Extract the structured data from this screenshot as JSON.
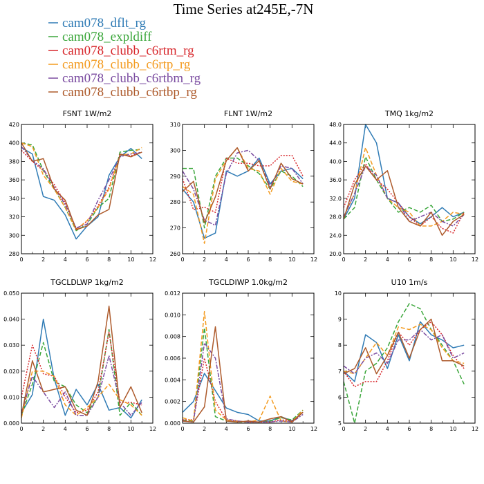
{
  "figure": {
    "title": "Time Series at245E,-7N"
  },
  "colors": {
    "cam078_dflt_rg": "#2f7bb5",
    "cam078_expldiff": "#3aa63a",
    "cam078_clubb_c6rtm_rg": "#d7262b",
    "cam078_clubb_c6rtp_rg": "#f39a1e",
    "cam078_clubb_c6rtbm_rg": "#7a4ba0",
    "cam078_clubb_c6rtbp_rg": "#ad5a2b"
  },
  "legend": [
    {
      "label": "cam078_dflt_rg",
      "color": "#2f7bb5"
    },
    {
      "label": "cam078_expldiff",
      "color": "#3aa63a"
    },
    {
      "label": "cam078_clubb_c6rtm_rg",
      "color": "#d7262b"
    },
    {
      "label": "cam078_clubb_c6rtp_rg",
      "color": "#f39a1e"
    },
    {
      "label": "cam078_clubb_c6rtbm_rg",
      "color": "#7a4ba0"
    },
    {
      "label": "cam078_clubb_c6rtbp_rg",
      "color": "#ad5a2b"
    }
  ],
  "chart_data": [
    {
      "type": "line",
      "title": "FSNT   1W/m2",
      "xlim": [
        0,
        12
      ],
      "ylim": [
        280,
        420
      ],
      "xticks": [
        "0",
        "2",
        "4",
        "6",
        "8",
        "10",
        "12"
      ],
      "yticks": [
        "280",
        "300",
        "320",
        "340",
        "360",
        "380",
        "400",
        "420"
      ],
      "x": [
        0,
        1,
        2,
        3,
        4,
        5,
        6,
        7,
        8,
        9,
        10,
        11
      ],
      "series": [
        {
          "name": "cam078_dflt_rg",
          "style": "solid",
          "values": [
            395,
            388,
            342,
            338,
            322,
            296,
            310,
            320,
            365,
            385,
            394,
            383
          ]
        },
        {
          "name": "cam078_expldiff",
          "style": "dash",
          "values": [
            400,
            398,
            370,
            350,
            330,
            305,
            312,
            330,
            340,
            390,
            392,
            393
          ]
        },
        {
          "name": "cam078_clubb_c6rtm_rg",
          "style": "dot",
          "values": [
            392,
            380,
            370,
            355,
            335,
            307,
            315,
            332,
            352,
            387,
            386,
            390
          ]
        },
        {
          "name": "cam078_clubb_c6rtp_rg",
          "style": "dash",
          "values": [
            400,
            396,
            365,
            350,
            330,
            306,
            316,
            330,
            350,
            387,
            388,
            395
          ]
        },
        {
          "name": "cam078_clubb_c6rtbm_rg",
          "style": "dashdot",
          "values": [
            396,
            381,
            372,
            352,
            333,
            308,
            312,
            338,
            360,
            385,
            388,
            390
          ]
        },
        {
          "name": "cam078_clubb_c6rtbp_rg",
          "style": "solid",
          "values": [
            400,
            380,
            383,
            350,
            338,
            306,
            310,
            322,
            328,
            388,
            385,
            390
          ]
        }
      ]
    },
    {
      "type": "line",
      "title": "FLNT   1W/m2",
      "xlim": [
        0,
        12
      ],
      "ylim": [
        260,
        310
      ],
      "xticks": [
        "0",
        "2",
        "4",
        "6",
        "8",
        "10",
        "12"
      ],
      "yticks": [
        "260",
        "270",
        "280",
        "290",
        "300",
        "310"
      ],
      "x": [
        0,
        1,
        2,
        3,
        4,
        5,
        6,
        7,
        8,
        9,
        10,
        11
      ],
      "series": [
        {
          "name": "cam078_dflt_rg",
          "style": "solid",
          "values": [
            285,
            280,
            266,
            268,
            292,
            290,
            292,
            297,
            287,
            292,
            293,
            289
          ]
        },
        {
          "name": "cam078_expldiff",
          "style": "dash",
          "values": [
            293,
            293,
            270,
            290,
            297,
            297,
            294,
            291,
            285,
            292,
            290,
            286
          ]
        },
        {
          "name": "cam078_clubb_c6rtm_rg",
          "style": "dot",
          "values": [
            289,
            277,
            278,
            276,
            297,
            295,
            295,
            294,
            294,
            298,
            298,
            290
          ]
        },
        {
          "name": "cam078_clubb_c6rtp_rg",
          "style": "dash",
          "values": [
            286,
            283,
            264,
            289,
            296,
            301,
            293,
            292,
            283,
            293,
            288,
            287
          ]
        },
        {
          "name": "cam078_clubb_c6rtbm_rg",
          "style": "dashdot",
          "values": [
            292,
            285,
            273,
            271,
            291,
            299,
            300,
            296,
            286,
            294,
            293,
            287
          ]
        },
        {
          "name": "cam078_clubb_c6rtbp_rg",
          "style": "solid",
          "values": [
            284,
            288,
            272,
            282,
            296,
            301,
            292,
            296,
            285,
            295,
            289,
            287
          ]
        }
      ]
    },
    {
      "type": "line",
      "title": "TMQ   1kg/m2",
      "xlim": [
        0,
        12
      ],
      "ylim": [
        20,
        48
      ],
      "xticks": [
        "0",
        "2",
        "4",
        "6",
        "8",
        "10",
        "12"
      ],
      "yticks": [
        "20.0",
        "24.0",
        "28.0",
        "32.0",
        "36.0",
        "40.0",
        "44.0",
        "48.0"
      ],
      "x": [
        0,
        1,
        2,
        3,
        4,
        5,
        6,
        7,
        8,
        9,
        10,
        11
      ],
      "series": [
        {
          "name": "cam078_dflt_rg",
          "style": "solid",
          "values": [
            27.5,
            32,
            48,
            44,
            32,
            31,
            28,
            26.5,
            28,
            30,
            28,
            29
          ]
        },
        {
          "name": "cam078_expldiff",
          "style": "dash",
          "values": [
            27.5,
            30,
            41,
            36,
            32,
            29,
            30,
            29,
            30.5,
            27,
            27.5,
            29
          ]
        },
        {
          "name": "cam078_clubb_c6rtm_rg",
          "style": "dot",
          "values": [
            30,
            36,
            39.5,
            36,
            34,
            31,
            28,
            26,
            28,
            25.5,
            24.5,
            29
          ]
        },
        {
          "name": "cam078_clubb_c6rtp_rg",
          "style": "dash",
          "values": [
            28,
            33,
            43,
            37,
            32,
            30,
            29,
            26,
            26,
            27,
            29,
            28.5
          ]
        },
        {
          "name": "cam078_clubb_c6rtbm_rg",
          "style": "dashdot",
          "values": [
            28,
            33,
            39,
            37,
            32,
            31,
            27,
            28,
            29,
            27,
            26,
            28.5
          ]
        },
        {
          "name": "cam078_clubb_c6rtbp_rg",
          "style": "solid",
          "values": [
            27.5,
            35,
            39,
            36,
            38,
            30,
            27,
            26,
            29,
            24,
            27,
            28.5
          ]
        }
      ]
    },
    {
      "type": "line",
      "title": "TGCLDLWP   1kg/m2",
      "xlim": [
        0,
        12
      ],
      "ylim": [
        0,
        0.05
      ],
      "xticks": [
        "0",
        "2",
        "4",
        "6",
        "8",
        "10",
        "12"
      ],
      "yticks": [
        "0.000",
        "0.010",
        "0.020",
        "0.030",
        "0.040",
        "0.050"
      ],
      "x": [
        0,
        1,
        2,
        3,
        4,
        5,
        6,
        7,
        8,
        9,
        10,
        11
      ],
      "series": [
        {
          "name": "cam078_dflt_rg",
          "style": "solid",
          "values": [
            0.004,
            0.011,
            0.04,
            0.017,
            0.003,
            0.013,
            0.007,
            0.015,
            0.005,
            0.006,
            0.002,
            0.009
          ]
        },
        {
          "name": "cam078_expldiff",
          "style": "dash",
          "values": [
            0.003,
            0.015,
            0.031,
            0.016,
            0.014,
            0.007,
            0.004,
            0.01,
            0.036,
            0.003,
            0.008,
            0.003
          ]
        },
        {
          "name": "cam078_clubb_c6rtm_rg",
          "style": "dot",
          "values": [
            0.01,
            0.03,
            0.019,
            0.018,
            0.01,
            0.004,
            0.005,
            0.012,
            0.035,
            0.008,
            0.008,
            0.007
          ]
        },
        {
          "name": "cam078_clubb_c6rtp_rg",
          "style": "dash",
          "values": [
            0.002,
            0.02,
            0.02,
            0.018,
            0.007,
            0.003,
            0.006,
            0.01,
            0.015,
            0.009,
            0.007,
            0.003
          ]
        },
        {
          "name": "cam078_clubb_c6rtbm_rg",
          "style": "dashdot",
          "values": [
            0.004,
            0.018,
            0.012,
            0.006,
            0.012,
            0.003,
            0.003,
            0.01,
            0.026,
            0.008,
            0.003,
            0.008
          ]
        },
        {
          "name": "cam078_clubb_c6rtbp_rg",
          "style": "solid",
          "values": [
            0.003,
            0.024,
            0.012,
            0.013,
            0.014,
            0.005,
            0.003,
            0.016,
            0.045,
            0.006,
            0.014,
            0.004
          ]
        }
      ]
    },
    {
      "type": "line",
      "title": "TGCLDIWP   1.0kg/m2",
      "xlim": [
        0,
        12
      ],
      "ylim": [
        0,
        0.012
      ],
      "xticks": [
        "0",
        "2",
        "4",
        "6",
        "8",
        "10",
        "12"
      ],
      "yticks": [
        "0.000",
        "0.002",
        "0.004",
        "0.006",
        "0.008",
        "0.010",
        "0.012"
      ],
      "x": [
        0,
        1,
        2,
        3,
        4,
        5,
        6,
        7,
        8,
        9,
        10,
        11
      ],
      "series": [
        {
          "name": "cam078_dflt_rg",
          "style": "solid",
          "values": [
            0.001,
            0.002,
            0.0046,
            0.003,
            0.0014,
            0.001,
            0.0008,
            0.0002,
            0.0002,
            0.0006,
            0.0002,
            0.001
          ]
        },
        {
          "name": "cam078_expldiff",
          "style": "dash",
          "values": [
            0.0003,
            0.0002,
            0.0088,
            0.0006,
            0.0002,
            0.0001,
            0.0001,
            0.0001,
            0.0002,
            0.0005,
            0.0003,
            0.0012
          ]
        },
        {
          "name": "cam078_clubb_c6rtm_rg",
          "style": "dot",
          "values": [
            0.0003,
            0.0003,
            0.006,
            0.002,
            0.0003,
            0.0002,
            0.0001,
            0.0001,
            0.0001,
            0.0003,
            0.0002,
            0.001
          ]
        },
        {
          "name": "cam078_clubb_c6rtp_rg",
          "style": "dash",
          "values": [
            0.0005,
            0.0002,
            0.0103,
            0.0012,
            0.0003,
            0.0002,
            0.0001,
            0.0003,
            0.0025,
            0.0002,
            0.0001,
            0.0012
          ]
        },
        {
          "name": "cam078_clubb_c6rtbm_rg",
          "style": "dashdot",
          "values": [
            0.0002,
            0.0001,
            0.0074,
            0.006,
            0.0004,
            0.0002,
            0.0001,
            0.0001,
            0.0001,
            0.0002,
            0.0001,
            0.0008
          ]
        },
        {
          "name": "cam078_clubb_c6rtbp_rg",
          "style": "solid",
          "values": [
            0.0002,
            0.0001,
            0.0015,
            0.0089,
            0.0002,
            0.0001,
            0.0002,
            0.0001,
            0.0004,
            0.0006,
            0.0001,
            0.001
          ]
        }
      ]
    },
    {
      "type": "line",
      "title": "U10   1m/s",
      "xlim": [
        0,
        12
      ],
      "ylim": [
        5,
        10
      ],
      "xticks": [
        "0",
        "2",
        "4",
        "6",
        "8",
        "10",
        "12"
      ],
      "yticks": [
        "5",
        "6",
        "7",
        "8",
        "9",
        "10"
      ],
      "x": [
        0,
        1,
        2,
        3,
        4,
        5,
        6,
        7,
        8,
        9,
        10,
        11
      ],
      "series": [
        {
          "name": "cam078_dflt_rg",
          "style": "solid",
          "values": [
            7.0,
            6.6,
            8.4,
            8.1,
            7.1,
            8.4,
            7.4,
            8.9,
            8.4,
            8.2,
            7.9,
            8.0
          ]
        },
        {
          "name": "cam078_expldiff",
          "style": "dash",
          "values": [
            6.6,
            5.0,
            7.0,
            7.3,
            7.9,
            8.9,
            9.6,
            9.4,
            8.6,
            8.0,
            7.4,
            6.5
          ]
        },
        {
          "name": "cam078_clubb_c6rtm_rg",
          "style": "dot",
          "values": [
            7.0,
            6.4,
            6.6,
            6.6,
            7.4,
            8.5,
            8.0,
            8.6,
            8.9,
            8.4,
            7.6,
            7.1
          ]
        },
        {
          "name": "cam078_clubb_c6rtp_rg",
          "style": "dash",
          "values": [
            7.0,
            6.9,
            7.5,
            8.1,
            7.6,
            8.7,
            8.6,
            8.8,
            8.6,
            7.9,
            7.4,
            7.3
          ]
        },
        {
          "name": "cam078_clubb_c6rtbm_rg",
          "style": "dashdot",
          "values": [
            7.2,
            6.9,
            7.5,
            7.7,
            7.3,
            8.2,
            8.2,
            8.6,
            8.2,
            8.4,
            7.5,
            7.7
          ]
        },
        {
          "name": "cam078_clubb_c6rtbp_rg",
          "style": "solid",
          "values": [
            6.9,
            7.1,
            7.9,
            6.9,
            7.6,
            8.5,
            7.5,
            8.6,
            9.0,
            7.4,
            7.4,
            7.2
          ]
        }
      ]
    }
  ]
}
